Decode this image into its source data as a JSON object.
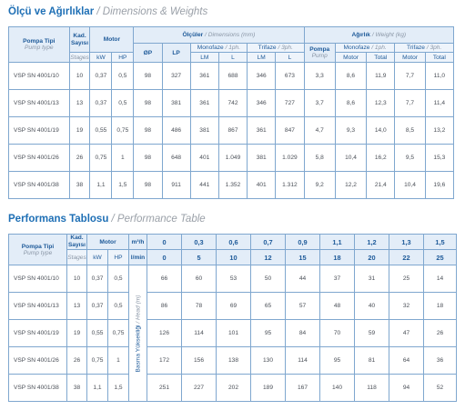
{
  "section1": {
    "title": "Ölçü ve Ağırlıklar",
    "title_en": "/ Dimensions & Weights",
    "headers": {
      "pump_type": "Pompa Tipi",
      "pump_type_en": "Pump type",
      "stages": "Kad. Sayısı",
      "stages_en": "Stages",
      "motor": "Motor",
      "kw": "kW",
      "hp": "HP",
      "dimensions": "Ölçüler",
      "dimensions_en": "/ Dimensions (mm)",
      "dia": "ØP",
      "lp": "LP",
      "monophase": "Monofaze",
      "monophase_en": "/ 1ph.",
      "triphase": "Trifaze",
      "triphase_en": "/ 3ph.",
      "lm": "LM",
      "l": "L",
      "weight": "Ağırlık",
      "weight_en": "/ Weight (kg)",
      "pump": "Pompa",
      "pump_en": "Pump",
      "motor_col": "Motor",
      "total": "Total"
    },
    "rows": [
      [
        "VSP SN 4001/10",
        "10",
        "0,37",
        "0,5",
        "98",
        "327",
        "361",
        "688",
        "346",
        "673",
        "3,3",
        "8,6",
        "11,9",
        "7,7",
        "11,0"
      ],
      [
        "VSP SN 4001/13",
        "13",
        "0,37",
        "0,5",
        "98",
        "381",
        "361",
        "742",
        "346",
        "727",
        "3,7",
        "8,6",
        "12,3",
        "7,7",
        "11,4"
      ],
      [
        "VSP SN 4001/19",
        "19",
        "0,55",
        "0,75",
        "98",
        "486",
        "381",
        "867",
        "361",
        "847",
        "4,7",
        "9,3",
        "14,0",
        "8,5",
        "13,2"
      ],
      [
        "VSP SN 4001/26",
        "26",
        "0,75",
        "1",
        "98",
        "648",
        "401",
        "1.049",
        "381",
        "1.029",
        "5,8",
        "10,4",
        "16,2",
        "9,5",
        "15,3"
      ],
      [
        "VSP SN 4001/38",
        "38",
        "1,1",
        "1,5",
        "98",
        "911",
        "441",
        "1.352",
        "401",
        "1.312",
        "9,2",
        "12,2",
        "21,4",
        "10,4",
        "19,6"
      ]
    ]
  },
  "section2": {
    "title": "Performans Tablosu",
    "title_en": "/ Performance Table",
    "headers": {
      "pump_type": "Pompa Tipi",
      "pump_type_en": "Pump type",
      "stages": "Kad. Sayısı",
      "stages_en": "Stages",
      "motor": "Motor",
      "kw": "kW",
      "hp": "HP",
      "m3h": "m³/h",
      "lmin": "l/min",
      "head_label": "Basma Yüksekliği",
      "head_label_en": "/ Head (m)"
    },
    "flow_m3h": [
      "0",
      "0,3",
      "0,6",
      "0,7",
      "0,9",
      "1,1",
      "1,2",
      "1,3",
      "1,5"
    ],
    "flow_lmin": [
      "0",
      "5",
      "10",
      "12",
      "15",
      "18",
      "20",
      "22",
      "25"
    ],
    "rows": [
      [
        "VSP SN 4001/10",
        "10",
        "0,37",
        "0,5",
        "66",
        "60",
        "53",
        "50",
        "44",
        "37",
        "31",
        "25",
        "14"
      ],
      [
        "VSP SN 4001/13",
        "13",
        "0,37",
        "0,5",
        "86",
        "78",
        "69",
        "65",
        "57",
        "48",
        "40",
        "32",
        "18"
      ],
      [
        "VSP SN 4001/19",
        "19",
        "0,55",
        "0,75",
        "126",
        "114",
        "101",
        "95",
        "84",
        "70",
        "59",
        "47",
        "26"
      ],
      [
        "VSP SN 4001/26",
        "26",
        "0,75",
        "1",
        "172",
        "156",
        "138",
        "130",
        "114",
        "95",
        "81",
        "64",
        "36"
      ],
      [
        "VSP SN 4001/38",
        "38",
        "1,1",
        "1,5",
        "251",
        "227",
        "202",
        "189",
        "167",
        "140",
        "118",
        "94",
        "52"
      ]
    ]
  }
}
